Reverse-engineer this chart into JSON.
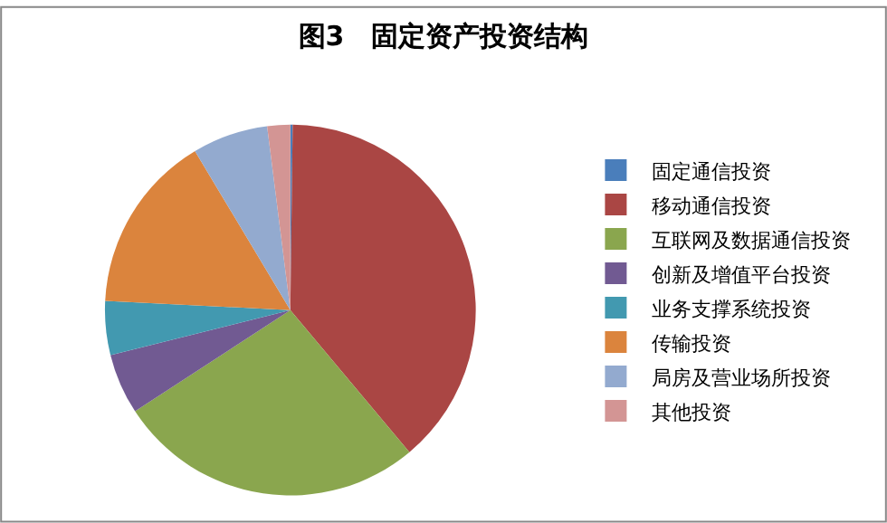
{
  "chart_data": {
    "type": "pie",
    "title": "图3　固定资产投资结构",
    "categories": [
      "固定通信投资",
      "移动通信投资",
      "互联网及数据通信投资",
      "创新及增值平台投资",
      "业务支撑系统投资",
      "传输投资",
      "局房及营业场所投资",
      "其他投资"
    ],
    "values": [
      0.2,
      38.7,
      26.9,
      5.3,
      4.7,
      15.6,
      6.6,
      2.0
    ],
    "colors": [
      "#4a7ebb",
      "#aa4644",
      "#8aa64e",
      "#715a92",
      "#4299b0",
      "#db843d",
      "#93aacf",
      "#d39594"
    ],
    "legend": "right"
  }
}
